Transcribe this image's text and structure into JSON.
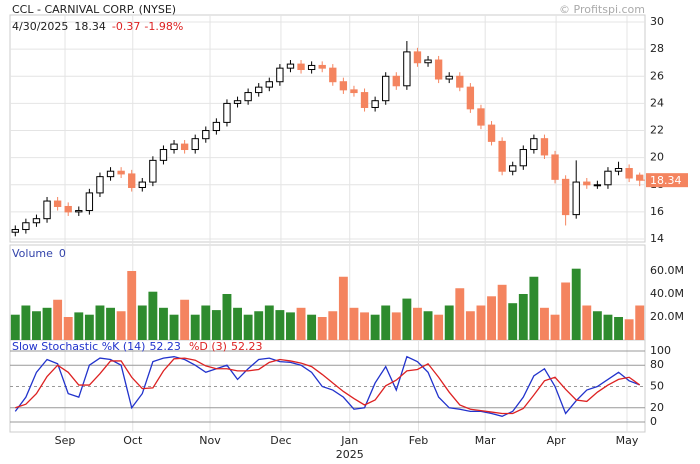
{
  "chart_data": [
    {
      "type": "candlestick",
      "title": "CCL - CARNIVAL CORP. (NYSE)",
      "source": "© Profitspi.com",
      "date": "4/30/2025",
      "change": -0.37,
      "change_pct_label": "-1.98%",
      "year": "2025",
      "up_color": "#ffffff",
      "down_color": "#f4845f",
      "xlim": [
        -0.5,
        59.5
      ],
      "xticks": [
        {
          "value": 4.7,
          "label": "Sep"
        },
        {
          "value": 11.1,
          "label": "Oct"
        },
        {
          "value": 18.4,
          "label": "Nov"
        },
        {
          "value": 25.1,
          "label": "Dec"
        },
        {
          "value": 31.6,
          "label": "Jan"
        },
        {
          "value": 38.1,
          "label": "Feb"
        },
        {
          "value": 44.4,
          "label": "Mar"
        },
        {
          "value": 51.1,
          "label": "Apr"
        },
        {
          "value": 57.8,
          "label": "May"
        }
      ],
      "ylim": [
        13.78,
        30.52
      ],
      "yticks": [
        14,
        16,
        18,
        20,
        22,
        24,
        26,
        28,
        30
      ],
      "grid": true,
      "open": [
        14.5,
        14.7,
        15.2,
        15.5,
        16.8,
        16.4,
        16.0,
        16.1,
        17.4,
        18.6,
        19.0,
        18.8,
        17.8,
        18.2,
        19.8,
        20.6,
        21.0,
        20.6,
        21.4,
        22.0,
        22.6,
        24.0,
        24.2,
        24.8,
        25.2,
        25.6,
        26.6,
        26.9,
        26.5,
        26.8,
        26.6,
        25.6,
        25.0,
        24.8,
        23.7,
        24.2,
        26.0,
        25.3,
        27.8,
        27.0,
        27.2,
        25.8,
        26.0,
        25.2,
        23.6,
        22.4,
        21.2,
        19.0,
        19.4,
        20.6,
        21.4,
        20.2,
        18.4,
        15.8,
        18.2,
        18.0,
        18.0,
        19.0,
        19.2,
        18.71
      ],
      "high": [
        15.0,
        15.5,
        15.8,
        17.1,
        17.1,
        16.7,
        16.4,
        17.7,
        18.9,
        19.3,
        19.3,
        19.1,
        18.5,
        20.1,
        20.9,
        21.3,
        21.3,
        21.7,
        22.3,
        22.9,
        24.3,
        24.5,
        25.1,
        25.5,
        25.9,
        26.9,
        27.2,
        27.2,
        27.1,
        27.1,
        26.9,
        25.9,
        25.3,
        25.1,
        24.5,
        26.3,
        26.3,
        28.6,
        28.1,
        27.5,
        27.5,
        26.3,
        26.3,
        25.5,
        23.9,
        22.7,
        21.5,
        19.7,
        20.9,
        21.7,
        21.7,
        20.5,
        18.7,
        19.8,
        18.5,
        18.3,
        19.3,
        19.7,
        19.5,
        18.9
      ],
      "low": [
        14.2,
        14.4,
        14.9,
        15.2,
        16.1,
        15.7,
        15.7,
        15.8,
        17.1,
        18.3,
        18.5,
        17.5,
        17.5,
        17.9,
        19.5,
        20.3,
        20.3,
        20.3,
        21.1,
        21.7,
        22.3,
        23.7,
        23.9,
        24.5,
        24.9,
        25.3,
        26.3,
        26.2,
        26.2,
        26.3,
        25.3,
        24.7,
        24.5,
        23.4,
        23.4,
        23.9,
        25.0,
        25.0,
        26.7,
        26.7,
        25.5,
        25.5,
        24.9,
        23.3,
        22.1,
        20.9,
        18.7,
        18.7,
        19.1,
        20.3,
        19.9,
        18.1,
        15.0,
        15.5,
        17.7,
        17.7,
        17.7,
        18.7,
        18.2,
        17.9
      ],
      "close": [
        14.7,
        15.2,
        15.5,
        16.8,
        16.4,
        16.0,
        16.1,
        17.4,
        18.6,
        19.0,
        18.8,
        17.8,
        18.2,
        19.8,
        20.6,
        21.0,
        20.6,
        21.4,
        22.0,
        22.6,
        24.0,
        24.2,
        24.8,
        25.2,
        25.6,
        26.6,
        26.9,
        26.5,
        26.8,
        26.6,
        25.6,
        25.0,
        24.8,
        23.7,
        24.2,
        26.0,
        25.3,
        27.8,
        27.0,
        27.2,
        25.8,
        26.0,
        25.2,
        23.6,
        22.4,
        21.2,
        19.0,
        19.4,
        20.6,
        21.4,
        20.2,
        18.4,
        15.8,
        18.2,
        18.0,
        18.0,
        19.0,
        19.2,
        18.5,
        18.34
      ]
    },
    {
      "type": "bar",
      "title": "Volume",
      "current_value": 0,
      "up_color": "#2e8b2e",
      "down_color": "#f4845f",
      "ylim": [
        0,
        82600000
      ],
      "yticks": [
        {
          "value": 20000000,
          "label": "20.0M"
        },
        {
          "value": 40000000,
          "label": "40.0M"
        },
        {
          "value": 60000000,
          "label": "60.0M"
        }
      ],
      "values": [
        22000000,
        30000000,
        25000000,
        28000000,
        35000000,
        20000000,
        24000000,
        22000000,
        30000000,
        28000000,
        25000000,
        60000000,
        30000000,
        42000000,
        28000000,
        22000000,
        35000000,
        22000000,
        30000000,
        26000000,
        40000000,
        28000000,
        22000000,
        25000000,
        30000000,
        26000000,
        24000000,
        28000000,
        22000000,
        20000000,
        25000000,
        55000000,
        28000000,
        24000000,
        22000000,
        30000000,
        24000000,
        36000000,
        28000000,
        25000000,
        22000000,
        30000000,
        45000000,
        25000000,
        30000000,
        38000000,
        48000000,
        32000000,
        40000000,
        55000000,
        28000000,
        22000000,
        50000000,
        62000000,
        30000000,
        25000000,
        22000000,
        20000000,
        18000000,
        30000000
      ]
    },
    {
      "type": "line",
      "ylim": [
        -14.1,
        115.5
      ],
      "yticks": [
        0,
        20,
        50,
        80,
        100
      ],
      "series": [
        {
          "name": "Slow Stochastic %K (14)",
          "color": "#2233cc",
          "values": [
            15,
            35,
            70,
            88,
            82,
            40,
            35,
            80,
            90,
            88,
            80,
            20,
            40,
            85,
            90,
            92,
            88,
            80,
            70,
            75,
            80,
            60,
            75,
            88,
            90,
            85,
            84,
            80,
            70,
            50,
            45,
            35,
            18,
            20,
            55,
            78,
            45,
            92,
            85,
            70,
            35,
            20,
            18,
            15,
            15,
            12,
            8,
            15,
            35,
            65,
            75,
            50,
            12,
            30,
            45,
            50,
            60,
            70,
            58,
            52.23
          ]
        },
        {
          "name": "%D (3)",
          "color": "#dd2222",
          "values": [
            20,
            25,
            40,
            64,
            80,
            70,
            52,
            52,
            68,
            86,
            86,
            63,
            47,
            48,
            72,
            89,
            90,
            87,
            79,
            75,
            75,
            72,
            72,
            74,
            84,
            88,
            86,
            83,
            78,
            67,
            55,
            43,
            33,
            24,
            31,
            51,
            59,
            72,
            74,
            82,
            63,
            42,
            24,
            18,
            16,
            14,
            12,
            12,
            19,
            38,
            58,
            63,
            46,
            31,
            29,
            42,
            52,
            60,
            63,
            52.23
          ]
        }
      ]
    }
  ]
}
